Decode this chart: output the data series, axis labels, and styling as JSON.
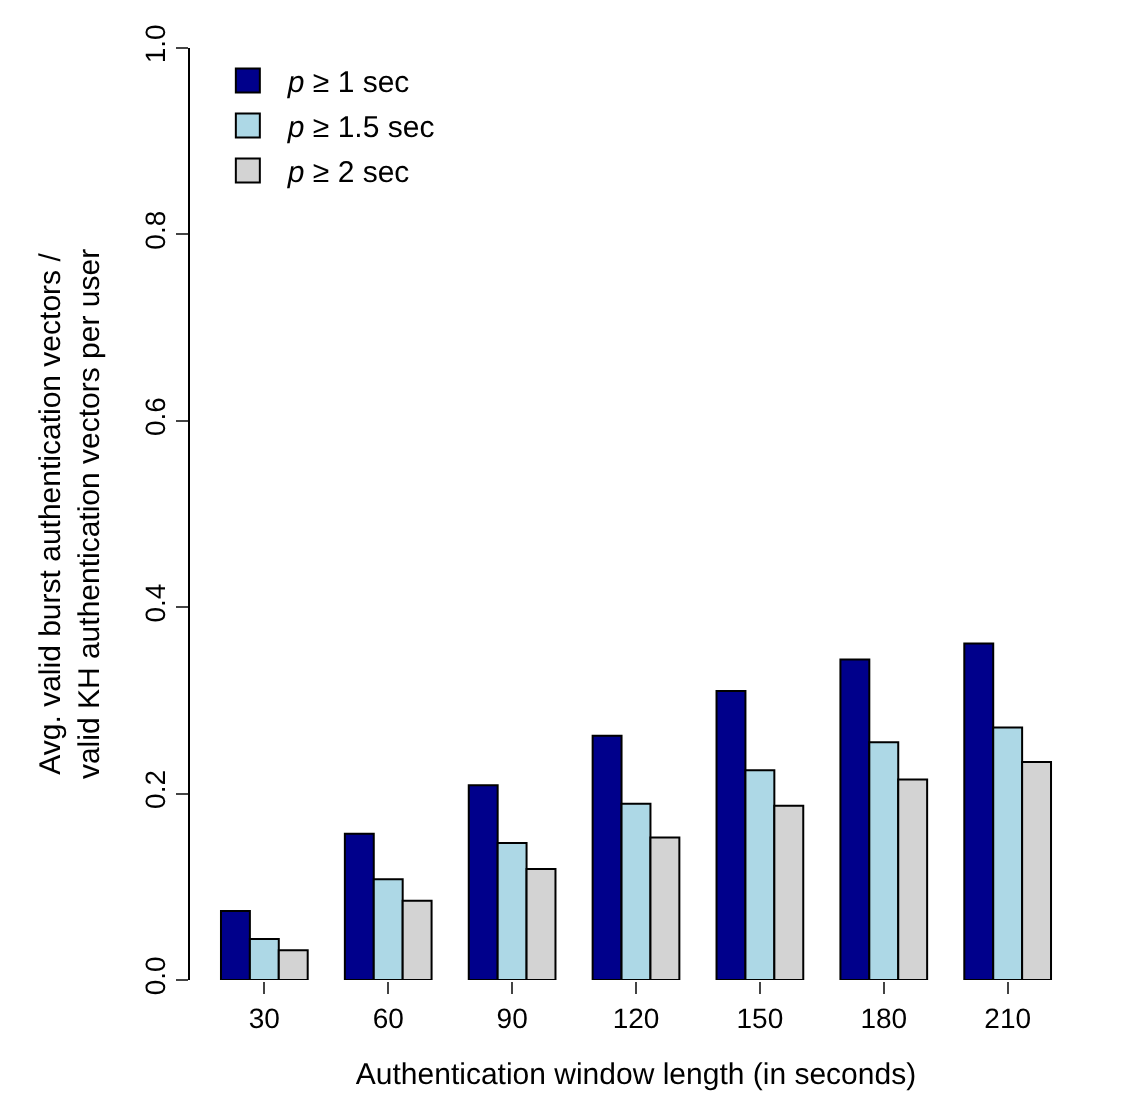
{
  "chart_data": {
    "type": "bar",
    "xlabel": "Authentication window length (in seconds)",
    "ylabel": "Avg. valid burst authentication vectors / valid KH authentication vectors per user",
    "categories": [
      "30",
      "60",
      "90",
      "120",
      "150",
      "180",
      "210"
    ],
    "series": [
      {
        "name": "p ≥ 1 sec",
        "color": "#00008b",
        "values": [
          0.074,
          0.157,
          0.209,
          0.262,
          0.31,
          0.344,
          0.361
        ]
      },
      {
        "name": "p ≥ 1.5 sec",
        "color": "#add8e6",
        "values": [
          0.044,
          0.108,
          0.147,
          0.189,
          0.225,
          0.255,
          0.271
        ]
      },
      {
        "name": "p ≥ 2 sec",
        "color": "#d3d3d3",
        "values": [
          0.032,
          0.085,
          0.119,
          0.153,
          0.187,
          0.215,
          0.234
        ]
      }
    ],
    "ylim": [
      0,
      1
    ],
    "yticks": [
      {
        "value": 0,
        "label": "0.0"
      },
      {
        "value": 0.2,
        "label": "0.2"
      },
      {
        "value": 0.4,
        "label": "0.4"
      },
      {
        "value": 0.6,
        "label": "0.6"
      },
      {
        "value": 0.8,
        "label": "0.8"
      },
      {
        "value": 1,
        "label": "1.0"
      }
    ],
    "legend": "top left"
  }
}
